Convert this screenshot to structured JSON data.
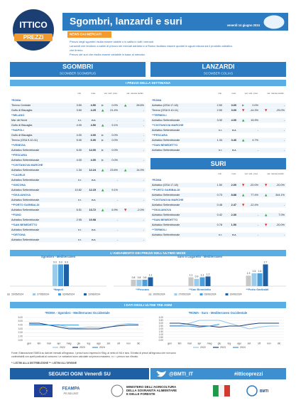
{
  "header": {
    "logo_line1": "ITTICO",
    "logo_line2": "PREZZI",
    "title": "Sgombri, lanzardi e suri",
    "date": "venerdì 14 giugno 2024"
  },
  "news": {
    "label": "NEWS DAI MERCATI",
    "lines": [
      "Prezzo degli sgombri risulta essere stabile o in salita in tutti i mercati.",
      "Lanzardi che tendono a salire di prezzo nei mercati adriatici e a Roma risultano essere quotati in ugual misura sia il prodotto adriatico",
      "che tirreno.",
      "Prezzo dei suri che risulta essere variabile in base al mercato."
    ]
  },
  "sections": {
    "week": "I PREZZI DELLA SETTIMANA",
    "month": "L'ANDAMENTO DEI PREZZI DELL'ULTIMO MESE",
    "years": "I DATI DEGLI ULTIMI TRE ANNI"
  },
  "tables": [
    {
      "title": "SGOMBRI",
      "subtitle": "SCOMBER SCOMBRUS",
      "columns": [
        "min.",
        "max.",
        "var. sett. prec.",
        "var. stessa settim."
      ],
      "groups": [
        {
          "market": "*ROMA",
          "rows": [
            {
              "cells": [
                "Tirreno Centrale",
                "3.50",
                "4.50",
                "0.0%",
                "28.6%"
              ],
              "trend": [
                "flat",
                "up"
              ]
            },
            {
              "cells": [
                "Golfo di Biscaglia",
                "3.50",
                "4.25",
                "21.4%",
                "-"
              ],
              "trend": [
                "up",
                null
              ]
            }
          ]
        },
        {
          "market": "**MILANO",
          "rows": [
            {
              "cells": [
                "Mar del Nord",
                "n.r.",
                "n.r.",
                "-",
                "-"
              ],
              "trend": [
                null,
                null
              ]
            },
            {
              "cells": [
                "Golfo di Biscaglia",
                "4.00",
                "4.50",
                "9.1%",
                "-"
              ],
              "trend": [
                "up",
                null
              ]
            }
          ]
        },
        {
          "market": "**NAPOLI",
          "rows": [
            {
              "cells": [
                "Golfo di Biscaglia",
                "4.00",
                "4.00",
                "0.0%",
                "-"
              ],
              "trend": [
                "flat",
                null
              ]
            },
            {
              "cells": [
                "Tirreno (GSA 9-10-11)",
                "5.00",
                "6.00",
                "0.0%",
                "-"
              ],
              "trend": [
                "flat",
                null
              ]
            }
          ]
        },
        {
          "market": "**VENEZIA",
          "rows": [
            {
              "cells": [
                "Adriatico Settentrionale",
                "6.00",
                "14.00",
                "0.0%",
                "-"
              ],
              "trend": [
                "flat",
                null
              ]
            }
          ]
        },
        {
          "market": "**PESCARA",
          "rows": [
            {
              "cells": [
                "Adriatico Settentrionale",
                "4.00",
                "4.00",
                "0.0%",
                "-"
              ],
              "trend": [
                "flat",
                null
              ]
            }
          ]
        },
        {
          "market": "**CIVITANOVA MARCHE",
          "rows": [
            {
              "cells": [
                "Adriatico Settentrionale",
                "1.34",
                "12.24",
                "23.6%",
                "14.0%"
              ],
              "trend": [
                "up",
                "up"
              ]
            }
          ]
        },
        {
          "market": "**CAORLE",
          "rows": [
            {
              "cells": [
                "Adriatico Settentrionale",
                "n.r.",
                "n.r.",
                "-",
                "-"
              ],
              "trend": [
                null,
                null
              ]
            }
          ]
        },
        {
          "market": "**ANCONA",
          "rows": [
            {
              "cells": [
                "Adriatico Settentrionale",
                "10.82",
                "12.15",
                "9.1%",
                "-"
              ],
              "trend": [
                "up",
                null
              ]
            }
          ]
        },
        {
          "market": "**GIULIANOVA",
          "rows": [
            {
              "cells": [
                "Adriatico Settentrionale",
                "n.r.",
                "n.r.",
                "-",
                "-"
              ],
              "trend": [
                null,
                null
              ]
            }
          ]
        },
        {
          "market": "**PORTO GARIBALDI",
          "rows": [
            {
              "cells": [
                "Adriatico Settentrionale",
                "6.51",
                "13.72",
                "6.9%",
                "-2.0%"
              ],
              "trend": [
                "up",
                "down"
              ]
            }
          ]
        },
        {
          "market": "**FANO",
          "rows": [
            {
              "cells": [
                "Adriatico Settentrionale",
                "2.95",
                "10.98",
                "-",
                "-"
              ],
              "trend": [
                null,
                null
              ]
            }
          ]
        },
        {
          "market": "**SAN BENEDETTO",
          "rows": [
            {
              "cells": [
                "Adriatico Settentrionale",
                "n.r.",
                "n.r.",
                "-",
                "-"
              ],
              "trend": [
                null,
                null
              ]
            }
          ]
        },
        {
          "market": "**ORTONA",
          "rows": [
            {
              "cells": [
                "Adriatico Settentrionale",
                "n.r.",
                "n.r.",
                "-",
                "-"
              ],
              "trend": [
                null,
                null
              ]
            }
          ]
        }
      ]
    },
    {
      "title": "LANZARDI",
      "subtitle": "SCOMBER COLIAS",
      "columns": [
        "min.",
        "max.",
        "var. sett. prec.",
        "var. stessa settim."
      ],
      "groups": [
        {
          "market": "*ROMA",
          "rows": [
            {
              "cells": [
                "Adriatico (GSA 17-18)",
                "2.50",
                "3.00",
                "0.0%",
                "-"
              ],
              "trend": [
                "flat",
                null
              ]
            },
            {
              "cells": [
                "Tirreno (GSA 9-10-11)",
                "2.50",
                "3.00",
                "-14.3%",
                "-25.0%"
              ],
              "trend": [
                "down",
                "down"
              ]
            }
          ]
        },
        {
          "market": "**TERMOLI",
          "rows": [
            {
              "cells": [
                "Adriatico Settentrionale",
                "3.30",
                "4.00",
                "15.9%",
                "-"
              ],
              "trend": [
                "up",
                null
              ]
            }
          ]
        },
        {
          "market": "**CIVITANOVA MARCHE",
          "rows": [
            {
              "cells": [
                "Adriatico Settentrionale",
                "n.r.",
                "n.r.",
                "-",
                "-"
              ],
              "trend": [
                null,
                null
              ]
            }
          ]
        },
        {
          "market": "**PESCARA",
          "rows": [
            {
              "cells": [
                "Adriatico Settentrionale",
                "1.34",
                "3.40",
                "4.7%",
                "-"
              ],
              "trend": [
                "up",
                null
              ]
            }
          ]
        },
        {
          "market": "**SAN BENEDETTO",
          "rows": [
            {
              "cells": [
                "Adriatico Settentrionale",
                "n.r.",
                "n.r.",
                "-",
                "-"
              ],
              "trend": [
                null,
                null
              ]
            }
          ]
        }
      ]
    },
    {
      "title": "SURI",
      "columns": [
        "min.",
        "max.",
        "var. sett. prec.",
        "var. stessa settim."
      ],
      "groups": [
        {
          "market": "*ROMA",
          "rows": [
            {
              "cells": [
                "Adriatico (GSA 17-18)",
                "1.50",
                "2.00",
                "-20.0%",
                "-20.0%"
              ],
              "trend": [
                "down",
                "down"
              ]
            }
          ]
        },
        {
          "market": "**PORTO GARIBALDI",
          "rows": [
            {
              "cells": [
                "Adriatico Settentrionale",
                "0.73",
                "8.88",
                "77.4%",
                "344.1%"
              ],
              "trend": [
                "up",
                "up"
              ]
            }
          ]
        },
        {
          "market": "**CIVITANOVA MARCHE",
          "rows": [
            {
              "cells": [
                "Adriatico Settentrionale",
                "0.48",
                "2.47",
                "-12.4%",
                "-"
              ],
              "trend": [
                "down",
                null
              ]
            }
          ]
        },
        {
          "market": "**GIULIANOVA",
          "rows": [
            {
              "cells": [
                "Adriatico Settentrionale",
                "0.42",
                "2.30",
                "-",
                "7.0%"
              ],
              "trend": [
                null,
                "up"
              ]
            }
          ]
        },
        {
          "market": "**SAN BENEDETTO",
          "rows": [
            {
              "cells": [
                "Adriatico Settentrionale",
                "0.78",
                "1.50",
                "-",
                "-20.0%"
              ],
              "trend": [
                null,
                "down"
              ]
            }
          ]
        },
        {
          "market": "**TERMOLI",
          "rows": [
            {
              "cells": [
                "Adriatico Settentrionale",
                "n.r.",
                "n.r.",
                "-",
                "-"
              ],
              "trend": [
                null,
                null
              ]
            }
          ]
        }
      ]
    }
  ],
  "bar_charts": [
    {
      "type": "bar",
      "title": "Sgombro - Mediterraneo",
      "categories": [
        "*Napoli"
      ],
      "ylim": [
        0,
        10
      ],
      "series": [
        {
          "name": "20/05/2024",
          "color": "#c8c8c8",
          "values": [
            null
          ],
          "value_labels": [
            null
          ]
        },
        {
          "name": "27/05/2024",
          "color": "#9ccbea",
          "values": [
            9.0
          ],
          "value_labels": [
            "9.0"
          ]
        },
        {
          "name": "03/06/2024",
          "color": "#4a9fdc",
          "values": [
            9.0
          ],
          "value_labels": [
            "9.0"
          ]
        },
        {
          "name": "10/06/2024",
          "color": "#1f5fa3",
          "values": [
            9.0
          ],
          "value_labels": [
            "9.0"
          ]
        }
      ]
    },
    {
      "type": "bar",
      "title": "Suro o Lugarello - Mediterraneo",
      "categories": [
        "**Pescara",
        "**San Benedetto",
        "**Porto Garibaldi"
      ],
      "ylim": [
        0,
        3
      ],
      "series": [
        {
          "name": "20/05/2024",
          "color": "#c8c8c8",
          "values": [
            0.8,
            1.1,
            1.3
          ],
          "value_labels": [
            "0.8",
            "1.1",
            "1.3"
          ]
        },
        {
          "name": "27/05/2024",
          "color": "#9ccbea",
          "values": [
            0.8,
            0.9,
            1.6
          ],
          "value_labels": [
            "0.8",
            "0.9",
            "1.6"
          ]
        },
        {
          "name": "03/06/2024",
          "color": "#4a9fdc",
          "values": [
            0.8,
            1.1,
            1.6
          ],
          "value_labels": [
            "0.8",
            "1.1",
            "1.6"
          ]
        },
        {
          "name": "10/06/2024",
          "color": "#1f5fa3",
          "values": [
            1.1,
            1.2,
            2.7
          ],
          "value_labels": [
            "1.1",
            "1.2",
            "2.7"
          ]
        }
      ]
    }
  ],
  "line_charts": [
    {
      "type": "line",
      "title": "*ROMA - Sgombro - Mediterraneo Occidentale",
      "categories": [
        "gen",
        "feb",
        "mar",
        "apr",
        "mag",
        "giu",
        "lug",
        "ago",
        "set",
        "ott",
        "nov",
        "dic"
      ],
      "ylim": [
        0,
        6
      ],
      "yticks": [
        {
          "value": 0,
          "label": "0.00"
        },
        {
          "value": 1,
          "label": "1.00"
        },
        {
          "value": 2,
          "label": "2.00"
        },
        {
          "value": 3,
          "label": "3.00"
        },
        {
          "value": 4,
          "label": "4.00"
        },
        {
          "value": 5,
          "label": "5.00"
        },
        {
          "value": 6,
          "label": "6.00"
        }
      ],
      "series": [
        {
          "name": "2022",
          "color": "#8ec6ea",
          "values": [
            4.3,
            4.2,
            4.0,
            4.1,
            3.3,
            3.2,
            3.5,
            3.4,
            3.4,
            4.1,
            4.4,
            4.3
          ]
        },
        {
          "name": "2023",
          "color": "#1f3f7a",
          "values": [
            4.5,
            4.5,
            4.0,
            3.5,
            3.0,
            3.0,
            3.0,
            3.0,
            3.5,
            3.8,
            4.0,
            4.0
          ]
        },
        {
          "name": "2024",
          "color": "#3b8fd4",
          "values": [
            4.0,
            4.0,
            4.0,
            4.0,
            4.0,
            4.0,
            null,
            null,
            null,
            null,
            null,
            null
          ]
        }
      ]
    },
    {
      "type": "line",
      "title": "*ROMA - Suro - Mediterraneo Occidentale",
      "categories": [
        "gen",
        "feb",
        "mar",
        "apr",
        "mag",
        "giu",
        "lug",
        "ago",
        "set",
        "ott",
        "nov",
        "dic"
      ],
      "ylim": [
        0,
        4
      ],
      "yticks": [
        {
          "value": 0,
          "label": "0.00"
        },
        {
          "value": 0.5,
          "label": "0.50"
        },
        {
          "value": 1,
          "label": "1.00"
        },
        {
          "value": 1.5,
          "label": "1.50"
        },
        {
          "value": 2,
          "label": "2.00"
        },
        {
          "value": 2.5,
          "label": "2.50"
        },
        {
          "value": 3,
          "label": "3.00"
        },
        {
          "value": 3.5,
          "label": "3.50"
        },
        {
          "value": 4,
          "label": "4.00"
        }
      ],
      "series": [
        {
          "name": "2022",
          "color": "#8ec6ea",
          "values": [
            2.6,
            2.6,
            3.0,
            3.5,
            3.5,
            3.5,
            3.0,
            2.5,
            2.0,
            2.3,
            2.5,
            2.5
          ]
        },
        {
          "name": "2023",
          "color": "#1f3f7a",
          "values": [
            3.0,
            3.0,
            2.8,
            2.5,
            2.5,
            2.3,
            2.5,
            2.5,
            2.8,
            3.0,
            3.0,
            3.0
          ]
        },
        {
          "name": "2024",
          "color": "#3b8fd4",
          "values": [
            2.5,
            2.5,
            2.5,
            2.3,
            2.5,
            2.8,
            null,
            null,
            null,
            null,
            null,
            null
          ]
        }
      ]
    }
  ],
  "footnote": [
    "Fonte: Elaborazione ISMEA su dati dei mercati all'ingrosso. I prezzi sono espressi in €/kg, al netto di IVA e tara. Si tratta di prezzi all'ingrosso che non sono",
    "confrontabili con quelli praticati al consumo. Le variazioni sono calcolate sul prezzo massimo. n.r. = prezzo non rilevato."
  ],
  "listini": "*: LISTINI ALLA DISTRIBUZIONE   **: LISTINI ALL'ORIGINE",
  "follow": {
    "label": "SEGUICI OGNI Venerdì SU",
    "twitter": "@BMTI_IT",
    "hashtag": "#itticoprezzi"
  },
  "logos": {
    "feampa": "FEAMPA",
    "feampa_sub": "PO 2021-2027",
    "ministry": [
      "MINISTERO DELL'AGRICOLTURA",
      "DELLA SOVRANITÀ ALIMENTARE",
      "E DELLE FORESTE"
    ],
    "bmti": "BMTI"
  }
}
